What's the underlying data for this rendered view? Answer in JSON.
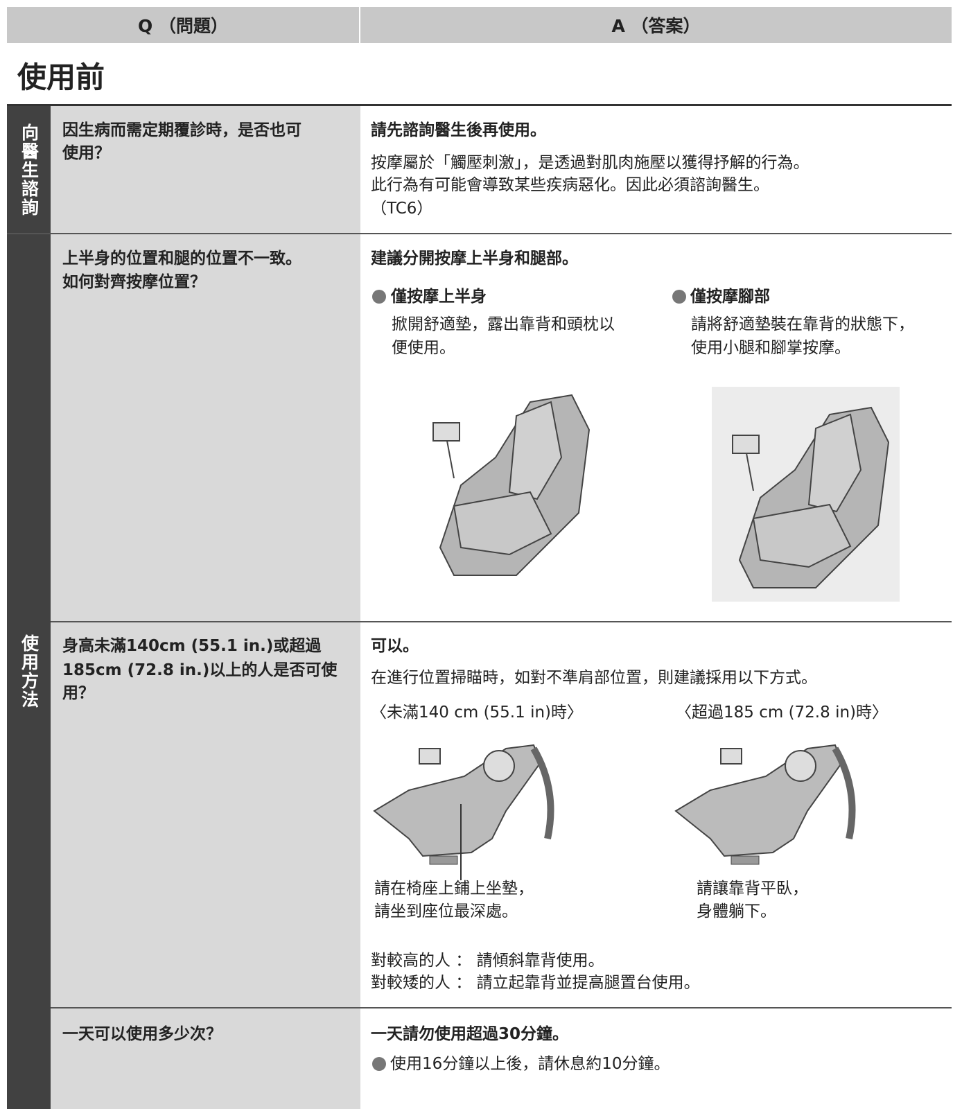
{
  "header": {
    "q": "Q （問題）",
    "a": "A （答案）"
  },
  "section_title": "使用前",
  "groups": [
    {
      "label": "向醫生諮詢",
      "rows": [
        {
          "question": [
            "因生病而需定期覆診時，是否也可",
            "使用？"
          ],
          "answer": {
            "lead": "請先諮詢醫生後再使用。",
            "lines": [
              "按摩屬於「觸壓刺激」，是透過對肌肉施壓以獲得抒解的行為。",
              "此行為有可能會導致某些疾病惡化。因此必須諮詢醫生。",
              "（TC6）"
            ]
          }
        }
      ]
    },
    {
      "label": "使用方法",
      "rows": [
        {
          "question": [
            "上半身的位置和腿的位置不一致。",
            "如何對齊按摩位置？"
          ],
          "answer": {
            "lead": "建議分開按摩上半身和腿部。",
            "options": [
              {
                "title": "僅按摩上半身",
                "lines": [
                  "掀開舒適墊，露出靠背和頭枕以",
                  "便使用。"
                ]
              },
              {
                "title": "僅按摩腳部",
                "lines": [
                  "請將舒適墊裝在靠背的狀態下，",
                  "使用小腿和腳掌按摩。"
                ]
              }
            ]
          }
        },
        {
          "question": [
            "身高未滿140cm (55.1 in.)或超過",
            "185cm (72.8 in.)以上的人是否可使",
            "用？"
          ],
          "answer": {
            "lead": "可以。",
            "lines": [
              "在進行位置掃瞄時，如對不準肩部位置，則建議採用以下方式。"
            ],
            "cases": [
              {
                "title": "〈未滿140 cm (55.1 in)時〉",
                "caption": [
                  "請在椅座上鋪上坐墊，",
                  "請坐到座位最深處。"
                ]
              },
              {
                "title": "〈超過185 cm (72.8 in)時〉",
                "caption": [
                  "請讓靠背平臥，",
                  "身體躺下。"
                ]
              }
            ],
            "notes": [
              "對較高的人 ： 請傾斜靠背使用。",
              "對較矮的人 ： 請立起靠背並提高腿置台使用。"
            ]
          }
        },
        {
          "question": [
            "一天可以使用多少次？"
          ],
          "answer": {
            "lead": "一天請勿使用超過30分鐘。",
            "bullets": [
              "使用16分鐘以上後，請休息約10分鐘。"
            ]
          }
        }
      ]
    }
  ]
}
